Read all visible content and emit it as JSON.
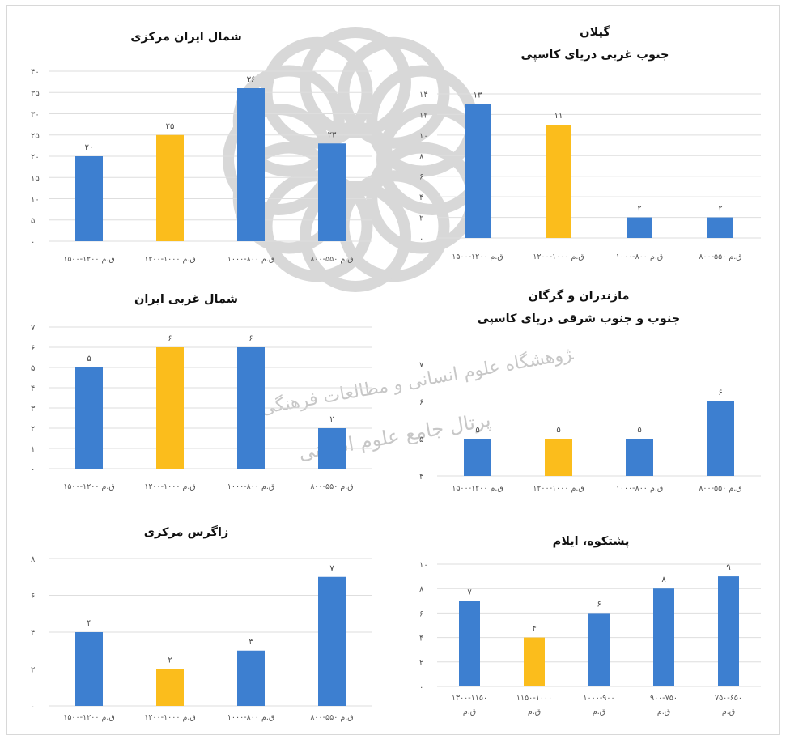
{
  "palette": {
    "blue": "#3d7fd0",
    "gold": "#fbbd1c",
    "grid": "#dedede",
    "watermark": "#b9b9b9"
  },
  "watermark": {
    "line1": "پژوهشگاه علوم انسانی و مطالعات فرهنگی",
    "line2": "پرتال جامع علوم انسانی"
  },
  "chart_data": [
    {
      "type": "bar",
      "title": [
        "شمال ایران مرکزی"
      ],
      "categories": [
        "۱۵۰۰-۱۲۰۰ ق.م",
        "۱۲۰۰-۱۰۰۰ ق.م",
        "۱۰۰۰-۸۰۰ ق.م",
        "۸۰۰-۵۵۰ ق.م"
      ],
      "values": [
        20,
        25,
        36,
        23
      ],
      "value_labels": [
        "۲۰",
        "۲۵",
        "۳۶",
        "۲۳"
      ],
      "bar_colors": [
        "blue",
        "gold",
        "blue",
        "blue"
      ],
      "ylim": [
        0,
        40
      ],
      "yticks": [
        "۰",
        "۵",
        "۱۰",
        "۱۵",
        "۲۰",
        "۲۵",
        "۳۰",
        "۳۵",
        "۴۰"
      ],
      "grid": true,
      "legend": "none"
    },
    {
      "type": "bar",
      "title": [
        "گیلان",
        "جنوب غربی دریای کاسپی"
      ],
      "categories": [
        "۱۵۰۰-۱۲۰۰ ق.م",
        "۱۲۰۰-۱۰۰۰ ق.م",
        "۱۰۰۰-۸۰۰ ق.م",
        "۸۰۰-۵۵۰ ق.م"
      ],
      "values": [
        13,
        11,
        2,
        2
      ],
      "value_labels": [
        "۱۳",
        "۱۱",
        "۲",
        "۲"
      ],
      "bar_colors": [
        "blue",
        "gold",
        "blue",
        "blue"
      ],
      "ylim": [
        0,
        14
      ],
      "yticks": [
        "۰",
        "۲",
        "۴",
        "۶",
        "۸",
        "۱۰",
        "۱۲",
        "۱۴"
      ],
      "grid": true,
      "legend": "none"
    },
    {
      "type": "bar",
      "title": [
        "شمال غربی ایران"
      ],
      "categories": [
        "۱۵۰۰-۱۲۰۰ ق.م",
        "۱۲۰۰-۱۰۰۰ ق.م",
        "۱۰۰۰-۸۰۰ ق.م",
        "۸۰۰-۵۵۰ ق.م"
      ],
      "values": [
        5,
        6,
        6,
        2
      ],
      "value_labels": [
        "۵",
        "۶",
        "۶",
        "۲"
      ],
      "bar_colors": [
        "blue",
        "gold",
        "blue",
        "blue"
      ],
      "ylim": [
        0,
        7
      ],
      "yticks": [
        "۰",
        "۱",
        "۲",
        "۳",
        "۴",
        "۵",
        "۶",
        "۷"
      ],
      "grid": true,
      "legend": "none"
    },
    {
      "type": "bar",
      "title": [
        "مازندران و گرگان",
        "جنوب و جنوب شرقی دریای کاسپی"
      ],
      "categories": [
        "۱۵۰۰-۱۲۰۰ ق.م",
        "۱۲۰۰-۱۰۰۰ ق.م",
        "۱۰۰۰-۸۰۰ ق.م",
        "۸۰۰-۵۵۰ ق.م"
      ],
      "values": [
        5,
        5,
        5,
        6
      ],
      "value_labels": [
        "۵",
        "۵",
        "۵",
        "۶"
      ],
      "bar_colors": [
        "blue",
        "gold",
        "blue",
        "blue"
      ],
      "ylim": [
        4,
        7
      ],
      "yticks": [
        "۴",
        "۵",
        "۶",
        "۷"
      ],
      "grid": false,
      "legend": "none"
    },
    {
      "type": "bar",
      "title": [
        "زاگرس مرکزی"
      ],
      "categories": [
        "۱۵۰۰-۱۲۰۰ ق.م",
        "۱۲۰۰-۱۰۰۰ ق.م",
        "۱۰۰۰-۸۰۰ ق.م",
        "۸۰۰-۵۵۰ ق.م"
      ],
      "values": [
        4,
        2,
        3,
        7
      ],
      "value_labels": [
        "۴",
        "۲",
        "۳",
        "۷"
      ],
      "bar_colors": [
        "blue",
        "gold",
        "blue",
        "blue"
      ],
      "ylim": [
        0,
        8
      ],
      "yticks": [
        "۰",
        "۲",
        "۴",
        "۶",
        "۸"
      ],
      "grid": true,
      "legend": "none"
    },
    {
      "type": "bar",
      "title": [
        "پشتکوه، ایلام"
      ],
      "categories": [
        [
          "۱۳۰۰-۱۱۵۰",
          "ق.م"
        ],
        [
          "۱۱۵۰-۱۰۰۰",
          "ق.م"
        ],
        [
          "۱۰۰۰-۹۰۰",
          "ق.م"
        ],
        [
          "۹۰۰-۷۵۰",
          "ق.م"
        ],
        [
          "۷۵۰-۶۵۰",
          "ق.م"
        ]
      ],
      "values": [
        7,
        4,
        6,
        8,
        9
      ],
      "value_labels": [
        "۷",
        "۴",
        "۶",
        "۸",
        "۹"
      ],
      "bar_colors": [
        "blue",
        "gold",
        "blue",
        "blue",
        "blue"
      ],
      "ylim": [
        0,
        10
      ],
      "yticks": [
        "۰",
        "۲",
        "۴",
        "۶",
        "۸",
        "۱۰"
      ],
      "grid": true,
      "legend": "none"
    }
  ]
}
